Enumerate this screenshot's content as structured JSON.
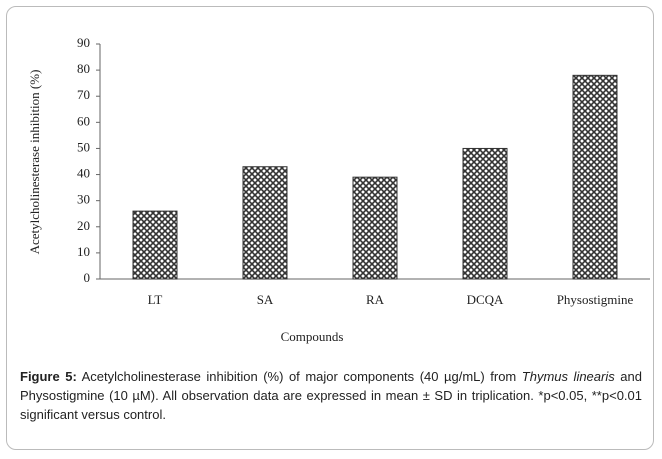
{
  "chart_data": {
    "type": "bar",
    "categories": [
      "LT",
      "SA",
      "RA",
      "DCQA",
      "Physostigmine"
    ],
    "values": [
      26,
      43,
      39,
      50,
      78
    ],
    "color": "#333333",
    "xlabel": "Compounds",
    "ylabel": "Acetylcholinesterase inhibition (%)",
    "ylim": [
      0,
      90
    ],
    "yticks": [
      0,
      10,
      20,
      30,
      40,
      50,
      60,
      70,
      80,
      90
    ],
    "grid": false
  },
  "caption": {
    "label": "Figure 5:",
    "text_1": "Acetylcholinesterase inhibition (%) of major components (40 µg/mL) from",
    "species": "Thymus linearis",
    "text_2": "and Physostigmine (10 µM). All observation data are expressed in mean ± SD in triplication. *p<0.05, **p<0.01 significant versus control."
  }
}
